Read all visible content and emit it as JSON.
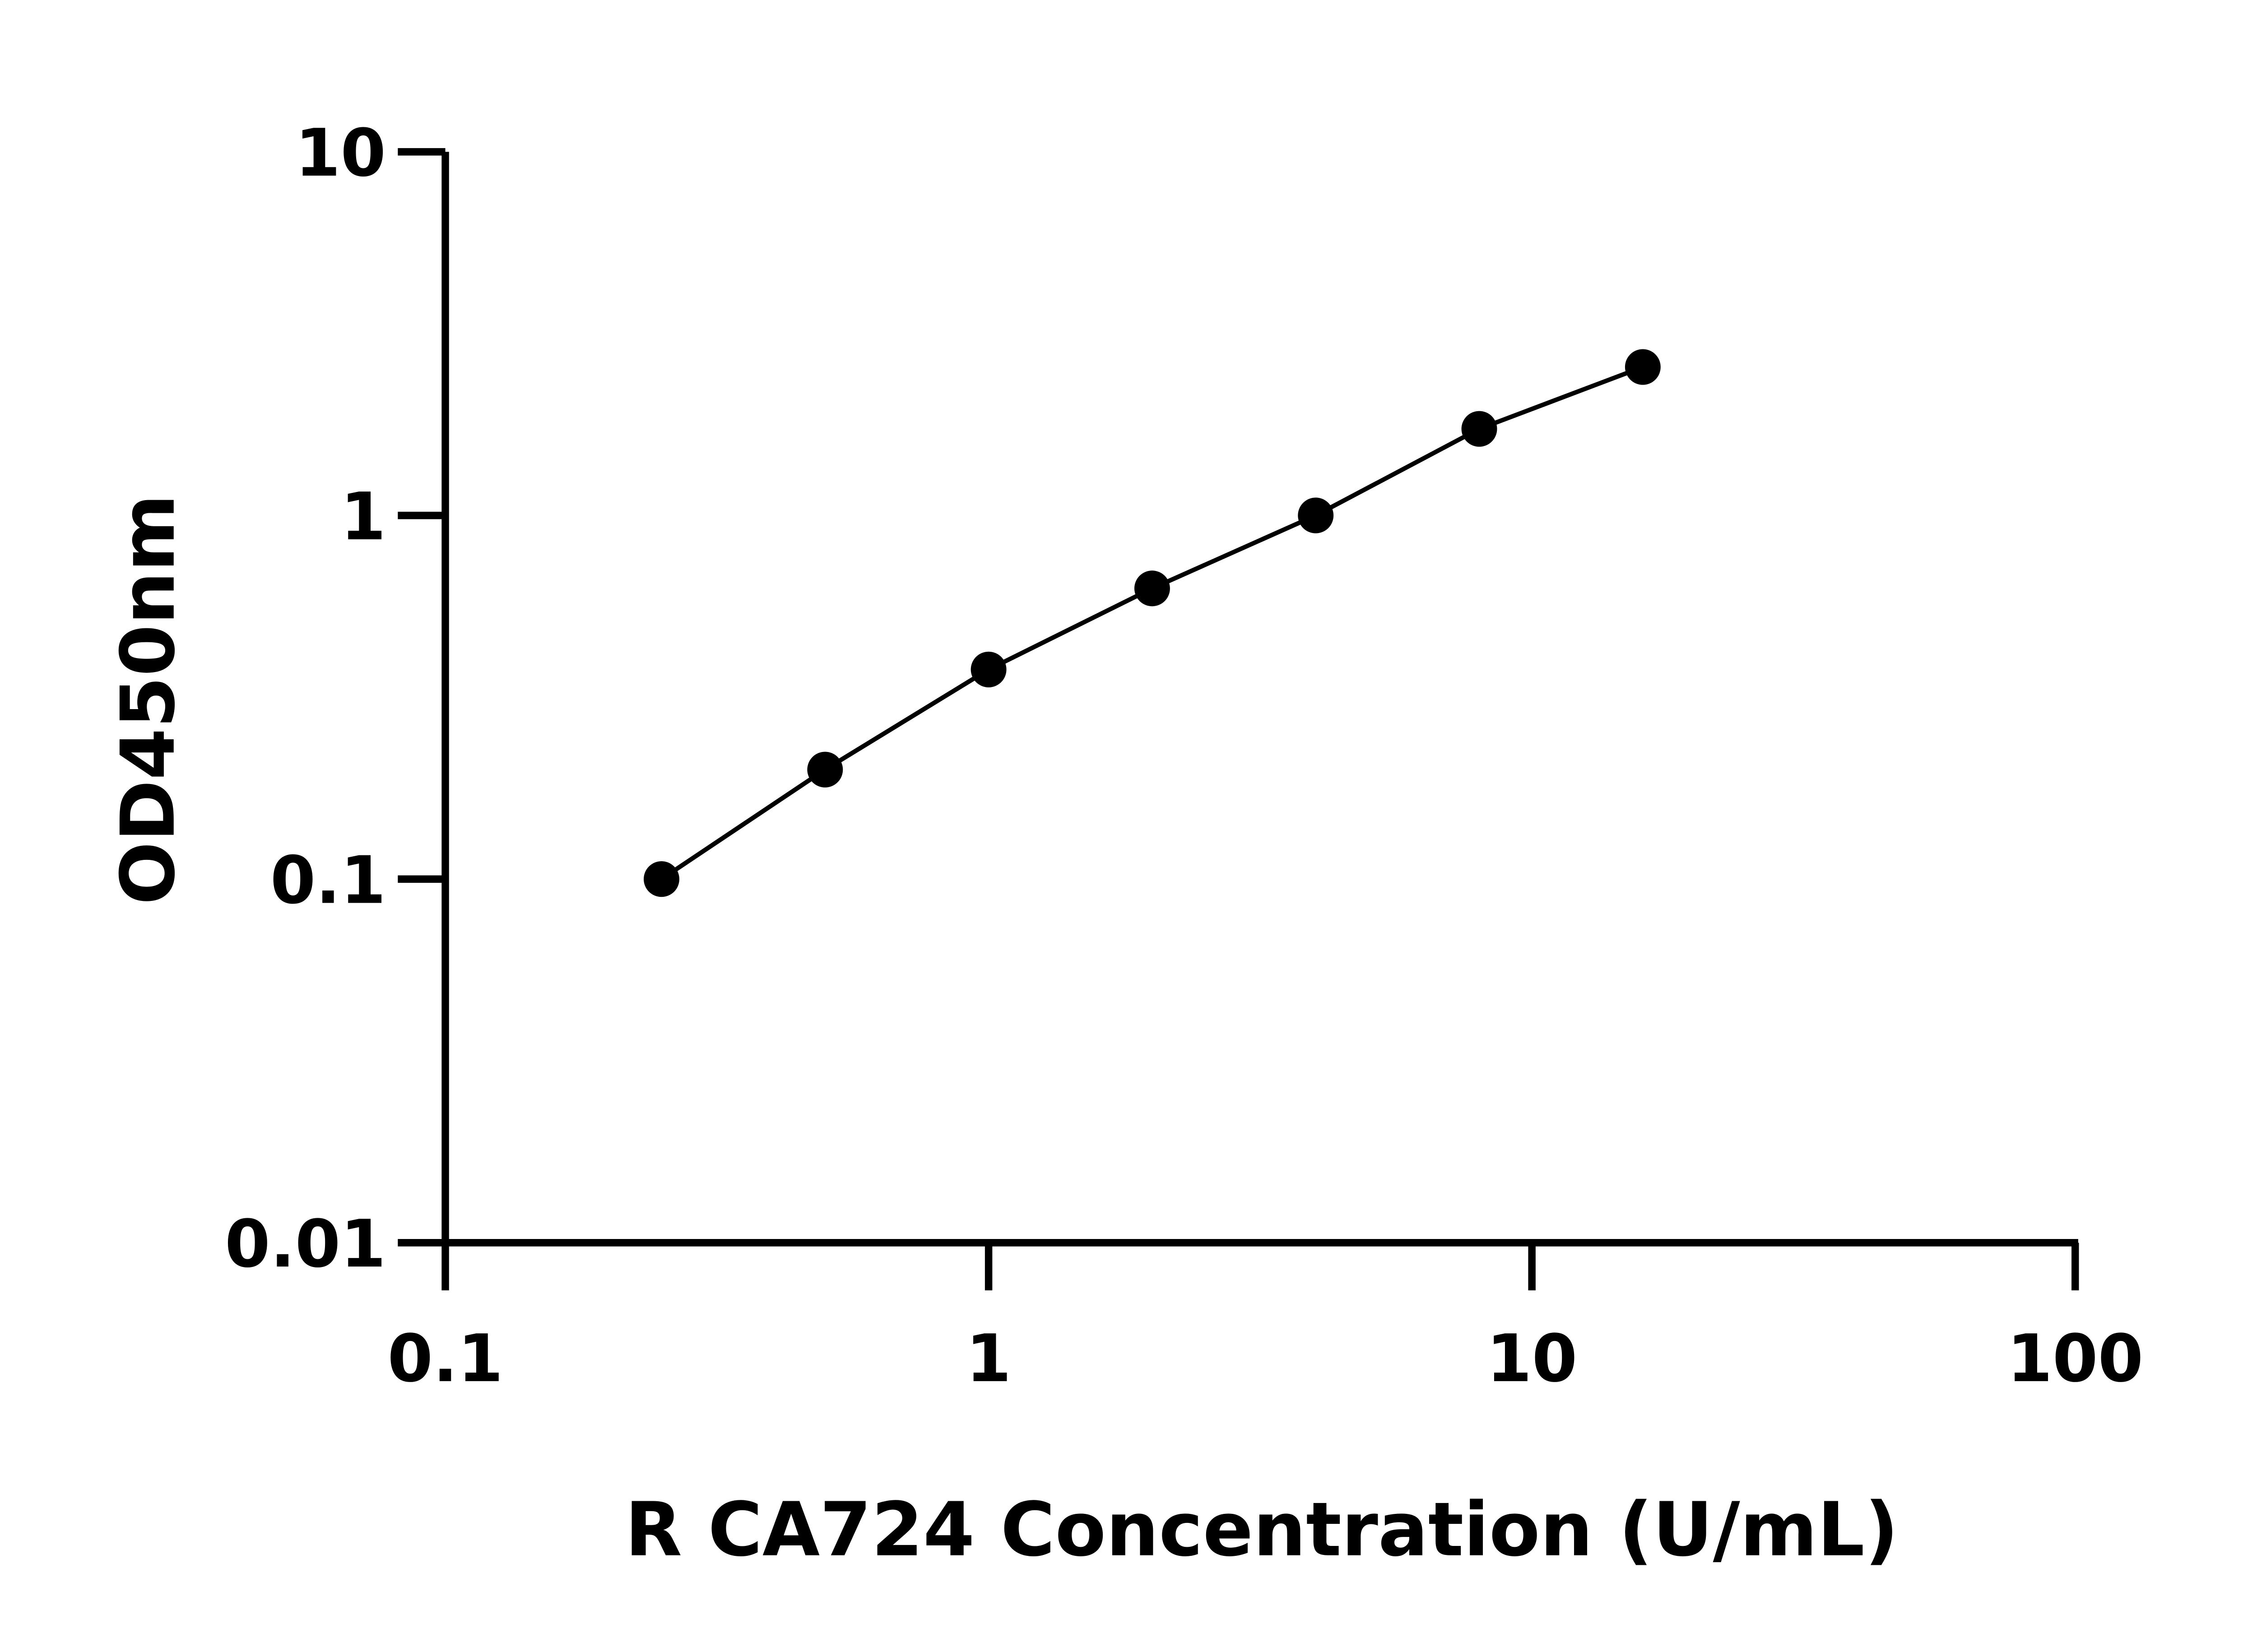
{
  "chart_data": {
    "type": "scatter",
    "title": "",
    "xlabel": "R CA724 Concentration (U/mL)",
    "ylabel": "OD450nm",
    "xscale": "log",
    "yscale": "log",
    "xlim": [
      0.1,
      100
    ],
    "ylim": [
      0.01,
      10
    ],
    "xticks": [
      "0.1",
      "1",
      "10",
      "100"
    ],
    "yticks": [
      "0.01",
      "0.1",
      "1",
      "10"
    ],
    "grid": false,
    "legend": "none",
    "fit_line": true,
    "series": [
      {
        "x": [
          0.25,
          0.5,
          1,
          2,
          4,
          8,
          16
        ],
        "y": [
          0.1,
          0.2,
          0.377,
          0.63,
          1.0,
          1.73,
          2.56
        ]
      }
    ],
    "colors": {
      "marker": "#000000",
      "line": "#000000",
      "axis": "#000000"
    }
  }
}
